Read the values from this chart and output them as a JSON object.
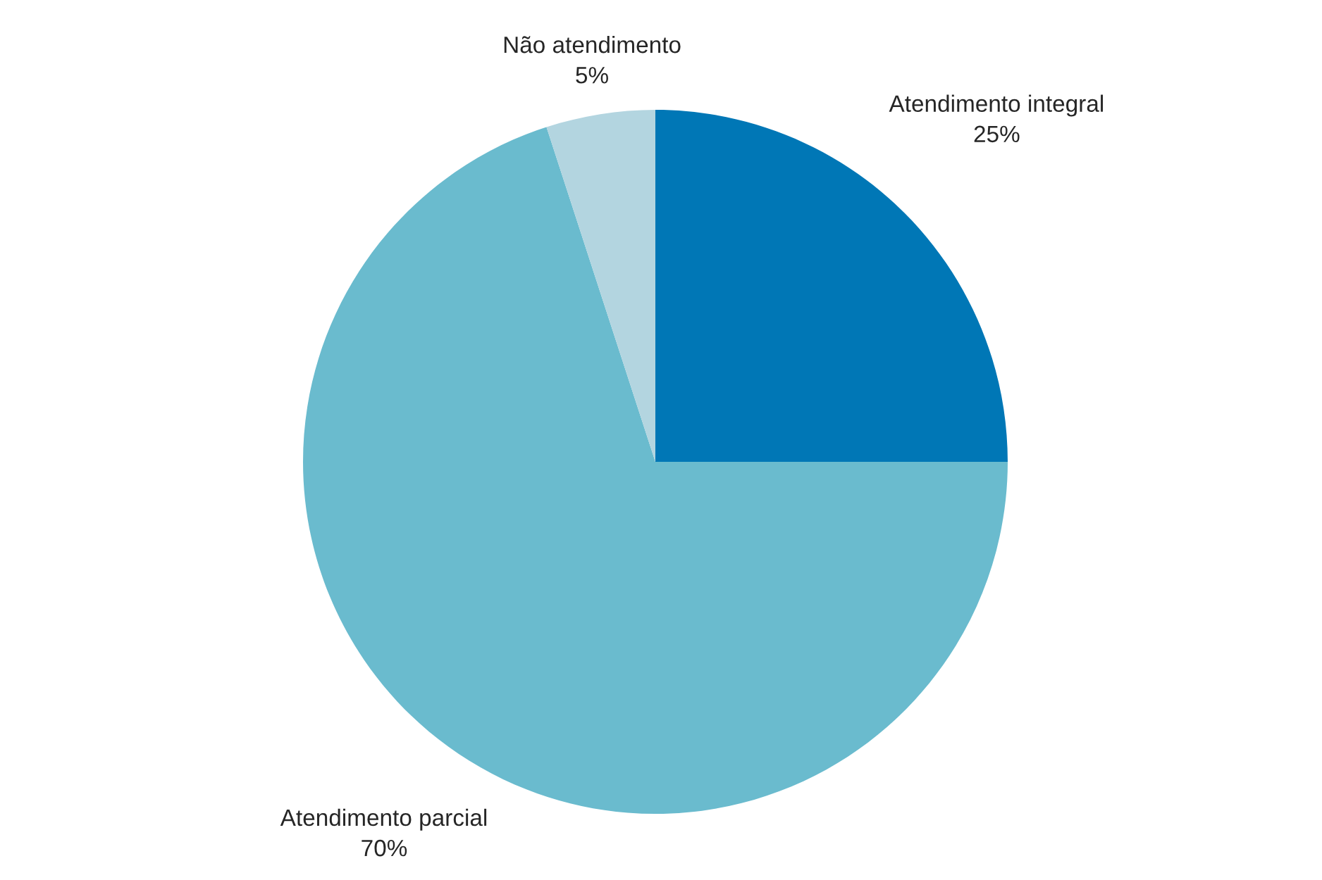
{
  "chart_data": {
    "type": "pie",
    "categories": [
      "Atendimento integral",
      "Atendimento parcial",
      "Não atendimento"
    ],
    "values": [
      25,
      70,
      5
    ],
    "value_labels": [
      "25%",
      "70%",
      "5%"
    ],
    "colors": [
      "#0077b6",
      "#6abbce",
      "#b3d5e0"
    ]
  }
}
